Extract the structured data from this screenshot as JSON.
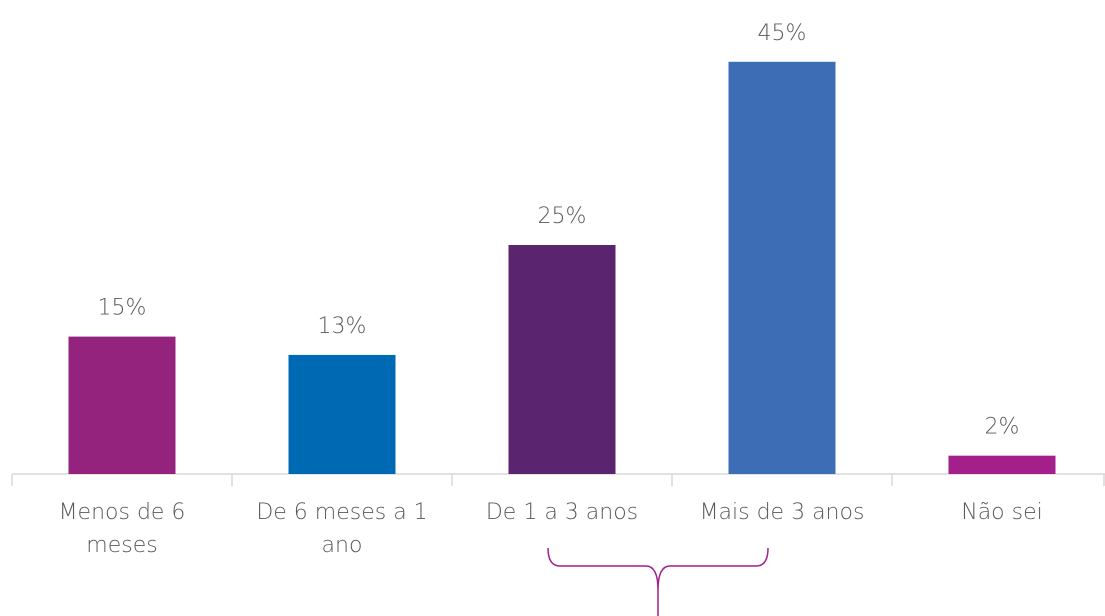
{
  "chart_data": {
    "type": "bar",
    "categories": [
      "Menos de 6 meses",
      "De 6 meses a 1 ano",
      "De 1 a 3 anos",
      "Mais de 3 anos",
      "Não sei"
    ],
    "values": [
      15,
      13,
      25,
      45,
      2
    ],
    "value_labels": [
      "15%",
      "13%",
      "25%",
      "45%",
      "2%"
    ],
    "colors": [
      "#93237c",
      "#0069b4",
      "#5a246e",
      "#3d6db5",
      "#a31f8a"
    ]
  }
}
